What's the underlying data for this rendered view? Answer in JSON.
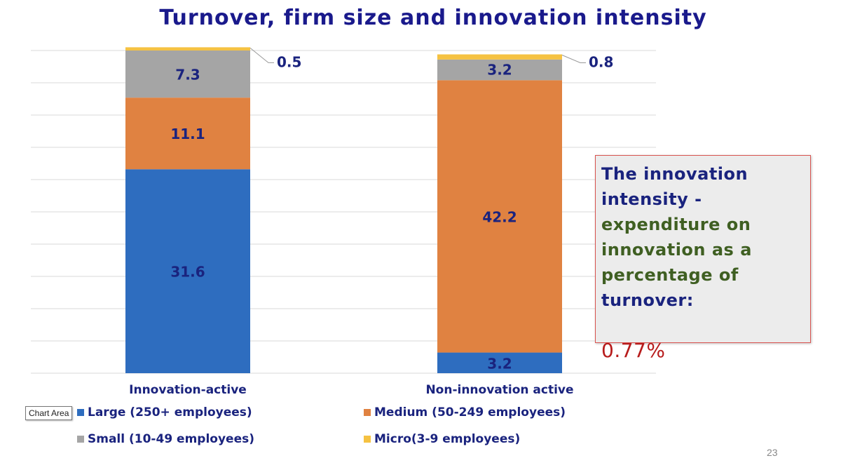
{
  "chart_data": {
    "type": "stacked-bar",
    "title": "Turnover, firm size and innovation intensity",
    "categories": [
      "Innovation-active",
      "Non-innovation active"
    ],
    "series": [
      {
        "name": "Large (250+ employees)",
        "color": "#2e6dbf",
        "values": [
          31.6,
          3.2
        ]
      },
      {
        "name": "Medium (50-249 employees)",
        "color": "#e08241",
        "values": [
          11.1,
          42.2
        ]
      },
      {
        "name": "Small (10-49 employees)",
        "color": "#a5a5a5",
        "values": [
          7.3,
          3.2
        ]
      },
      {
        "name": "Micro(3-9 employees)",
        "color": "#f5c242",
        "values": [
          0.5,
          0.8
        ]
      }
    ],
    "ylim": [
      0,
      50
    ],
    "gridlines": true,
    "legend": "bottom",
    "xlabel": "",
    "ylabel": ""
  },
  "callout": {
    "text_part1": "The innovation intensity - ",
    "text_part2": "expenditure on innovation as a percentage of ",
    "text_part3": "turnover:",
    "value": "0.77%"
  },
  "tooltip": "Chart Area",
  "page_number": "23"
}
